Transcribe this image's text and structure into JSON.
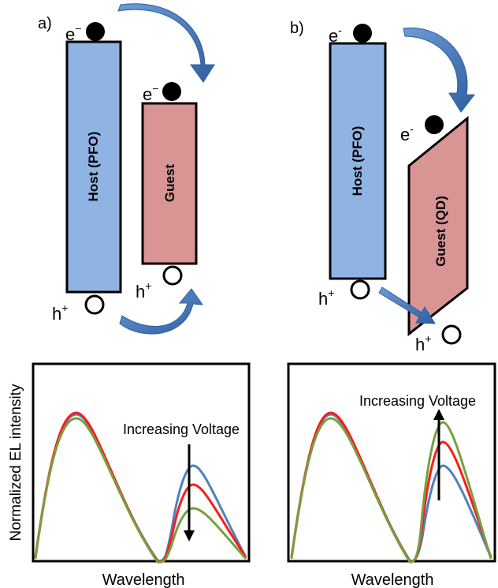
{
  "panel_a": {
    "label": "a)",
    "host_label": "Host (PFO)",
    "guest_label": "Guest",
    "electron_label": "e",
    "electron_sign": "−",
    "hole_label": "h",
    "hole_sign": "+",
    "plot": {
      "ylabel": "Normalized EL intensity",
      "xlabel": "Wavelength",
      "annotation": "Increasing Voltage",
      "arrow_direction": "down"
    }
  },
  "panel_b": {
    "label": "b)",
    "host_label": "Host (PFO)",
    "guest_label": "Guest (QD)",
    "electron_label": "e",
    "electron_sign": "-",
    "hole_label": "h",
    "hole_sign": "+",
    "plot": {
      "xlabel": "Wavelength",
      "annotation": "Increasing Voltage",
      "arrow_direction": "up"
    }
  },
  "colors": {
    "host": "#8fb4e3",
    "guest": "#d99594",
    "arrow": "#3d6fb4",
    "series": [
      "#4f81bd",
      "#ff1a1a",
      "#77a040"
    ]
  }
}
